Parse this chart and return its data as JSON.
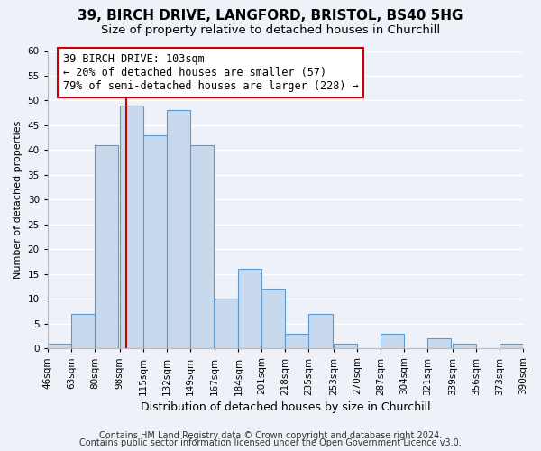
{
  "title": "39, BIRCH DRIVE, LANGFORD, BRISTOL, BS40 5HG",
  "subtitle": "Size of property relative to detached houses in Churchill",
  "xlabel": "Distribution of detached houses by size in Churchill",
  "ylabel": "Number of detached properties",
  "bins": [
    46,
    63,
    80,
    98,
    115,
    132,
    149,
    167,
    184,
    201,
    218,
    235,
    253,
    270,
    287,
    304,
    321,
    339,
    356,
    373,
    390
  ],
  "counts": [
    1,
    7,
    41,
    49,
    43,
    48,
    41,
    10,
    16,
    12,
    3,
    7,
    1,
    0,
    3,
    0,
    2,
    1,
    0,
    1
  ],
  "bar_color": "#c8d9ed",
  "bar_edge_color": "#5b9bd5",
  "property_line_x": 103,
  "property_line_color": "#cc0000",
  "annotation_text": "39 BIRCH DRIVE: 103sqm\n← 20% of detached houses are smaller (57)\n79% of semi-detached houses are larger (228) →",
  "annotation_box_color": "#ffffff",
  "annotation_box_edge_color": "#cc0000",
  "ylim": [
    0,
    60
  ],
  "yticks": [
    0,
    5,
    10,
    15,
    20,
    25,
    30,
    35,
    40,
    45,
    50,
    55,
    60
  ],
  "tick_labels": [
    "46sqm",
    "63sqm",
    "80sqm",
    "98sqm",
    "115sqm",
    "132sqm",
    "149sqm",
    "167sqm",
    "184sqm",
    "201sqm",
    "218sqm",
    "235sqm",
    "253sqm",
    "270sqm",
    "287sqm",
    "304sqm",
    "321sqm",
    "339sqm",
    "356sqm",
    "373sqm",
    "390sqm"
  ],
  "footer1": "Contains HM Land Registry data © Crown copyright and database right 2024.",
  "footer2": "Contains public sector information licensed under the Open Government Licence v3.0.",
  "background_color": "#eef2f8",
  "grid_color": "#ffffff",
  "title_fontsize": 11,
  "subtitle_fontsize": 9.5,
  "xlabel_fontsize": 9,
  "ylabel_fontsize": 8,
  "tick_fontsize": 7.5,
  "footer_fontsize": 7,
  "annotation_fontsize": 8.5
}
